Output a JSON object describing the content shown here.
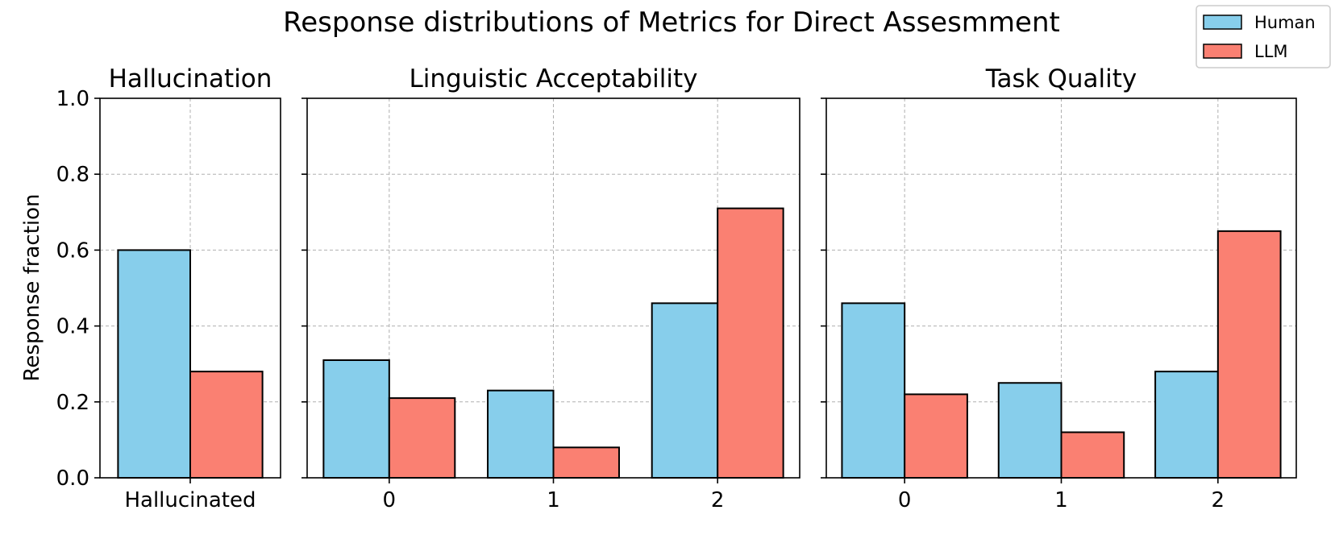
{
  "figure": {
    "title": "Response distributions of Metrics for Direct Assesmment"
  },
  "legend": {
    "placement": "top-right",
    "entries": [
      {
        "name": "Human",
        "color": "#87CEEB"
      },
      {
        "name": "LLM",
        "color": "#FA8072"
      }
    ]
  },
  "chart_data": [
    {
      "type": "bar",
      "title": "Hallucination",
      "categories": [
        "Hallucinated"
      ],
      "series": [
        {
          "name": "Human",
          "values": [
            0.6
          ]
        },
        {
          "name": "LLM",
          "values": [
            0.28
          ]
        }
      ],
      "xlabel": "",
      "ylabel": "Response fraction",
      "ylim": [
        0,
        1.0
      ],
      "yticks": [
        0.0,
        0.2,
        0.4,
        0.6,
        0.8,
        1.0
      ],
      "ytick_labels": [
        "0.0",
        "0.2",
        "0.4",
        "0.6",
        "0.8",
        "1.0"
      ],
      "grid": true
    },
    {
      "type": "bar",
      "title": "Linguistic Acceptability",
      "categories": [
        "0",
        "1",
        "2"
      ],
      "series": [
        {
          "name": "Human",
          "values": [
            0.31,
            0.23,
            0.46
          ]
        },
        {
          "name": "LLM",
          "values": [
            0.21,
            0.08,
            0.71
          ]
        }
      ],
      "xlabel": "",
      "ylabel": "",
      "ylim": [
        0,
        1.0
      ],
      "grid": true
    },
    {
      "type": "bar",
      "title": "Task Quality",
      "categories": [
        "0",
        "1",
        "2"
      ],
      "series": [
        {
          "name": "Human",
          "values": [
            0.46,
            0.25,
            0.28
          ]
        },
        {
          "name": "LLM",
          "values": [
            0.22,
            0.12,
            0.65
          ]
        }
      ],
      "xlabel": "",
      "ylabel": "",
      "ylim": [
        0,
        1.0
      ],
      "grid": true
    }
  ]
}
